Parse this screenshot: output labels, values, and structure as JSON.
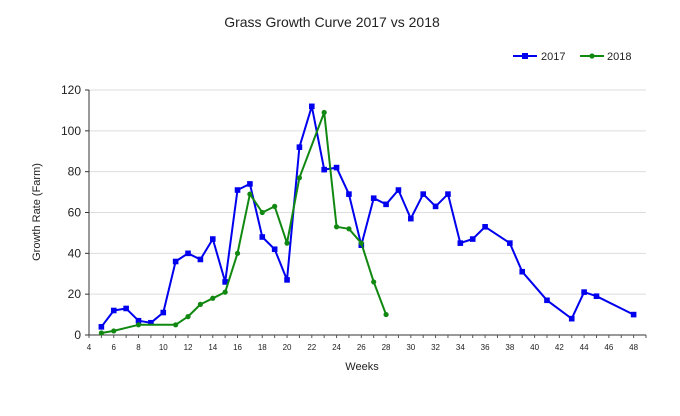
{
  "chart_data": {
    "type": "line",
    "title": "Grass Growth Curve 2017 vs 2018",
    "xlabel": "Weeks",
    "ylabel": "Growth Rate (Farm)",
    "xlim": [
      4,
      49
    ],
    "ylim": [
      0,
      120
    ],
    "x_ticks": [
      4,
      6,
      8,
      10,
      12,
      14,
      16,
      18,
      20,
      22,
      24,
      26,
      28,
      30,
      32,
      34,
      36,
      38,
      40,
      42,
      44,
      46,
      48
    ],
    "y_ticks": [
      0,
      20,
      40,
      60,
      80,
      100,
      120
    ],
    "grid": "horizontal",
    "legend": "top-right",
    "series": [
      {
        "name": "2017",
        "color": "#0000ee",
        "marker": "square",
        "points": [
          [
            5,
            4
          ],
          [
            6,
            12
          ],
          [
            7,
            13
          ],
          [
            8,
            7
          ],
          [
            9,
            6
          ],
          [
            10,
            11
          ],
          [
            11,
            36
          ],
          [
            12,
            40
          ],
          [
            13,
            37
          ],
          [
            14,
            47
          ],
          [
            15,
            26
          ],
          [
            16,
            71
          ],
          [
            17,
            74
          ],
          [
            18,
            48
          ],
          [
            19,
            42
          ],
          [
            20,
            27
          ],
          [
            21,
            92
          ],
          [
            22,
            112
          ],
          [
            23,
            81
          ],
          [
            24,
            82
          ],
          [
            25,
            69
          ],
          [
            26,
            44
          ],
          [
            27,
            67
          ],
          [
            28,
            64
          ],
          [
            29,
            71
          ],
          [
            30,
            57
          ],
          [
            31,
            69
          ],
          [
            32,
            63
          ],
          [
            33,
            69
          ],
          [
            34,
            45
          ],
          [
            35,
            47
          ],
          [
            36,
            53
          ],
          [
            38,
            45
          ],
          [
            39,
            31
          ],
          [
            41,
            17
          ],
          [
            43,
            8
          ],
          [
            44,
            21
          ],
          [
            45,
            19
          ],
          [
            48,
            10
          ]
        ]
      },
      {
        "name": "2018",
        "color": "#118811",
        "marker": "dot",
        "points": [
          [
            5,
            1
          ],
          [
            6,
            2
          ],
          [
            8,
            5
          ],
          [
            11,
            5
          ],
          [
            12,
            9
          ],
          [
            13,
            15
          ],
          [
            14,
            18
          ],
          [
            15,
            21
          ],
          [
            16,
            40
          ],
          [
            17,
            69
          ],
          [
            18,
            60
          ],
          [
            19,
            63
          ],
          [
            20,
            45
          ],
          [
            21,
            77
          ],
          [
            23,
            109
          ],
          [
            24,
            53
          ],
          [
            25,
            52
          ],
          [
            26,
            45
          ],
          [
            27,
            26
          ],
          [
            28,
            10
          ]
        ]
      }
    ]
  }
}
